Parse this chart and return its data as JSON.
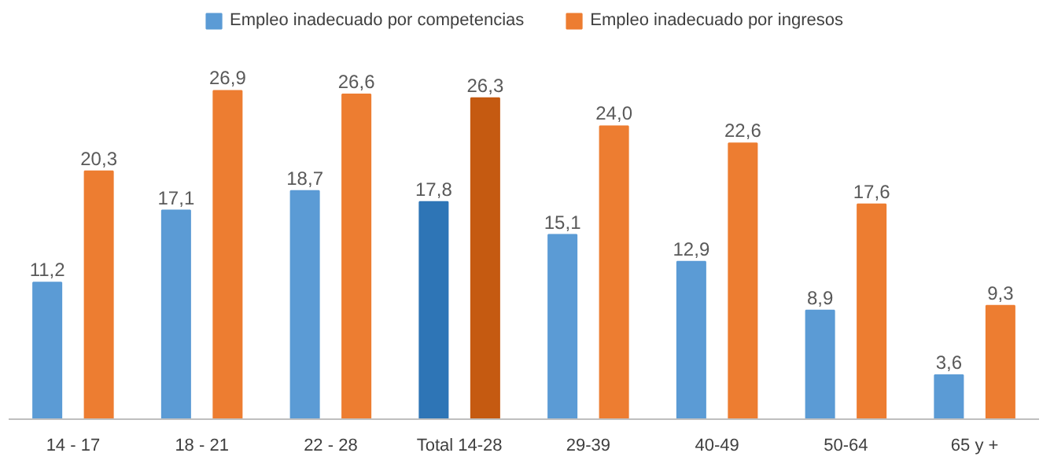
{
  "chart_data": {
    "type": "bar",
    "categories": [
      "14 - 17",
      "18 - 21",
      "22 - 28",
      "Total 14-28",
      "29-39",
      "40-49",
      "50-64",
      "65 y +"
    ],
    "series": [
      {
        "name": "Empleo inadecuado por competencias",
        "color": "#5b9bd5",
        "colors": [
          null,
          null,
          null,
          "#2e75b6",
          null,
          null,
          null,
          null
        ],
        "values": [
          11.2,
          17.1,
          18.7,
          17.8,
          15.1,
          12.9,
          8.9,
          3.6
        ],
        "value_labels": [
          "11,2",
          "17,1",
          "18,7",
          "17,8",
          "15,1",
          "12,9",
          "8,9",
          "3,6"
        ]
      },
      {
        "name": "Empleo inadecuado por ingresos",
        "color": "#ed7d31",
        "colors": [
          null,
          null,
          null,
          "#c55a11",
          null,
          null,
          null,
          null
        ],
        "values": [
          20.3,
          26.9,
          26.6,
          26.3,
          24.0,
          22.6,
          17.6,
          9.3
        ],
        "value_labels": [
          "20,3",
          "26,9",
          "26,6",
          "26,3",
          "24,0",
          "22,6",
          "17,6",
          "9,3"
        ]
      }
    ],
    "legend": "top",
    "grid": false
  }
}
